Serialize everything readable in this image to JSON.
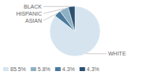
{
  "chart_data": {
    "type": "pie",
    "categories": [
      "WHITE",
      "ASIAN",
      "HISPANIC",
      "BLACK"
    ],
    "values": [
      85.5,
      4.3,
      5.8,
      4.3
    ],
    "colors": [
      "#d6e4ef",
      "#4a7a9b",
      "#8eb0c5",
      "#2b5070"
    ],
    "legend": "bottom",
    "legend_entries": [
      {
        "label": "85.5%",
        "color": "#d6e4ef"
      },
      {
        "label": "5.8%",
        "color": "#8eb0c5"
      },
      {
        "label": "4.3%",
        "color": "#4a7a9b"
      },
      {
        "label": "4.3%",
        "color": "#2b5070"
      }
    ]
  }
}
